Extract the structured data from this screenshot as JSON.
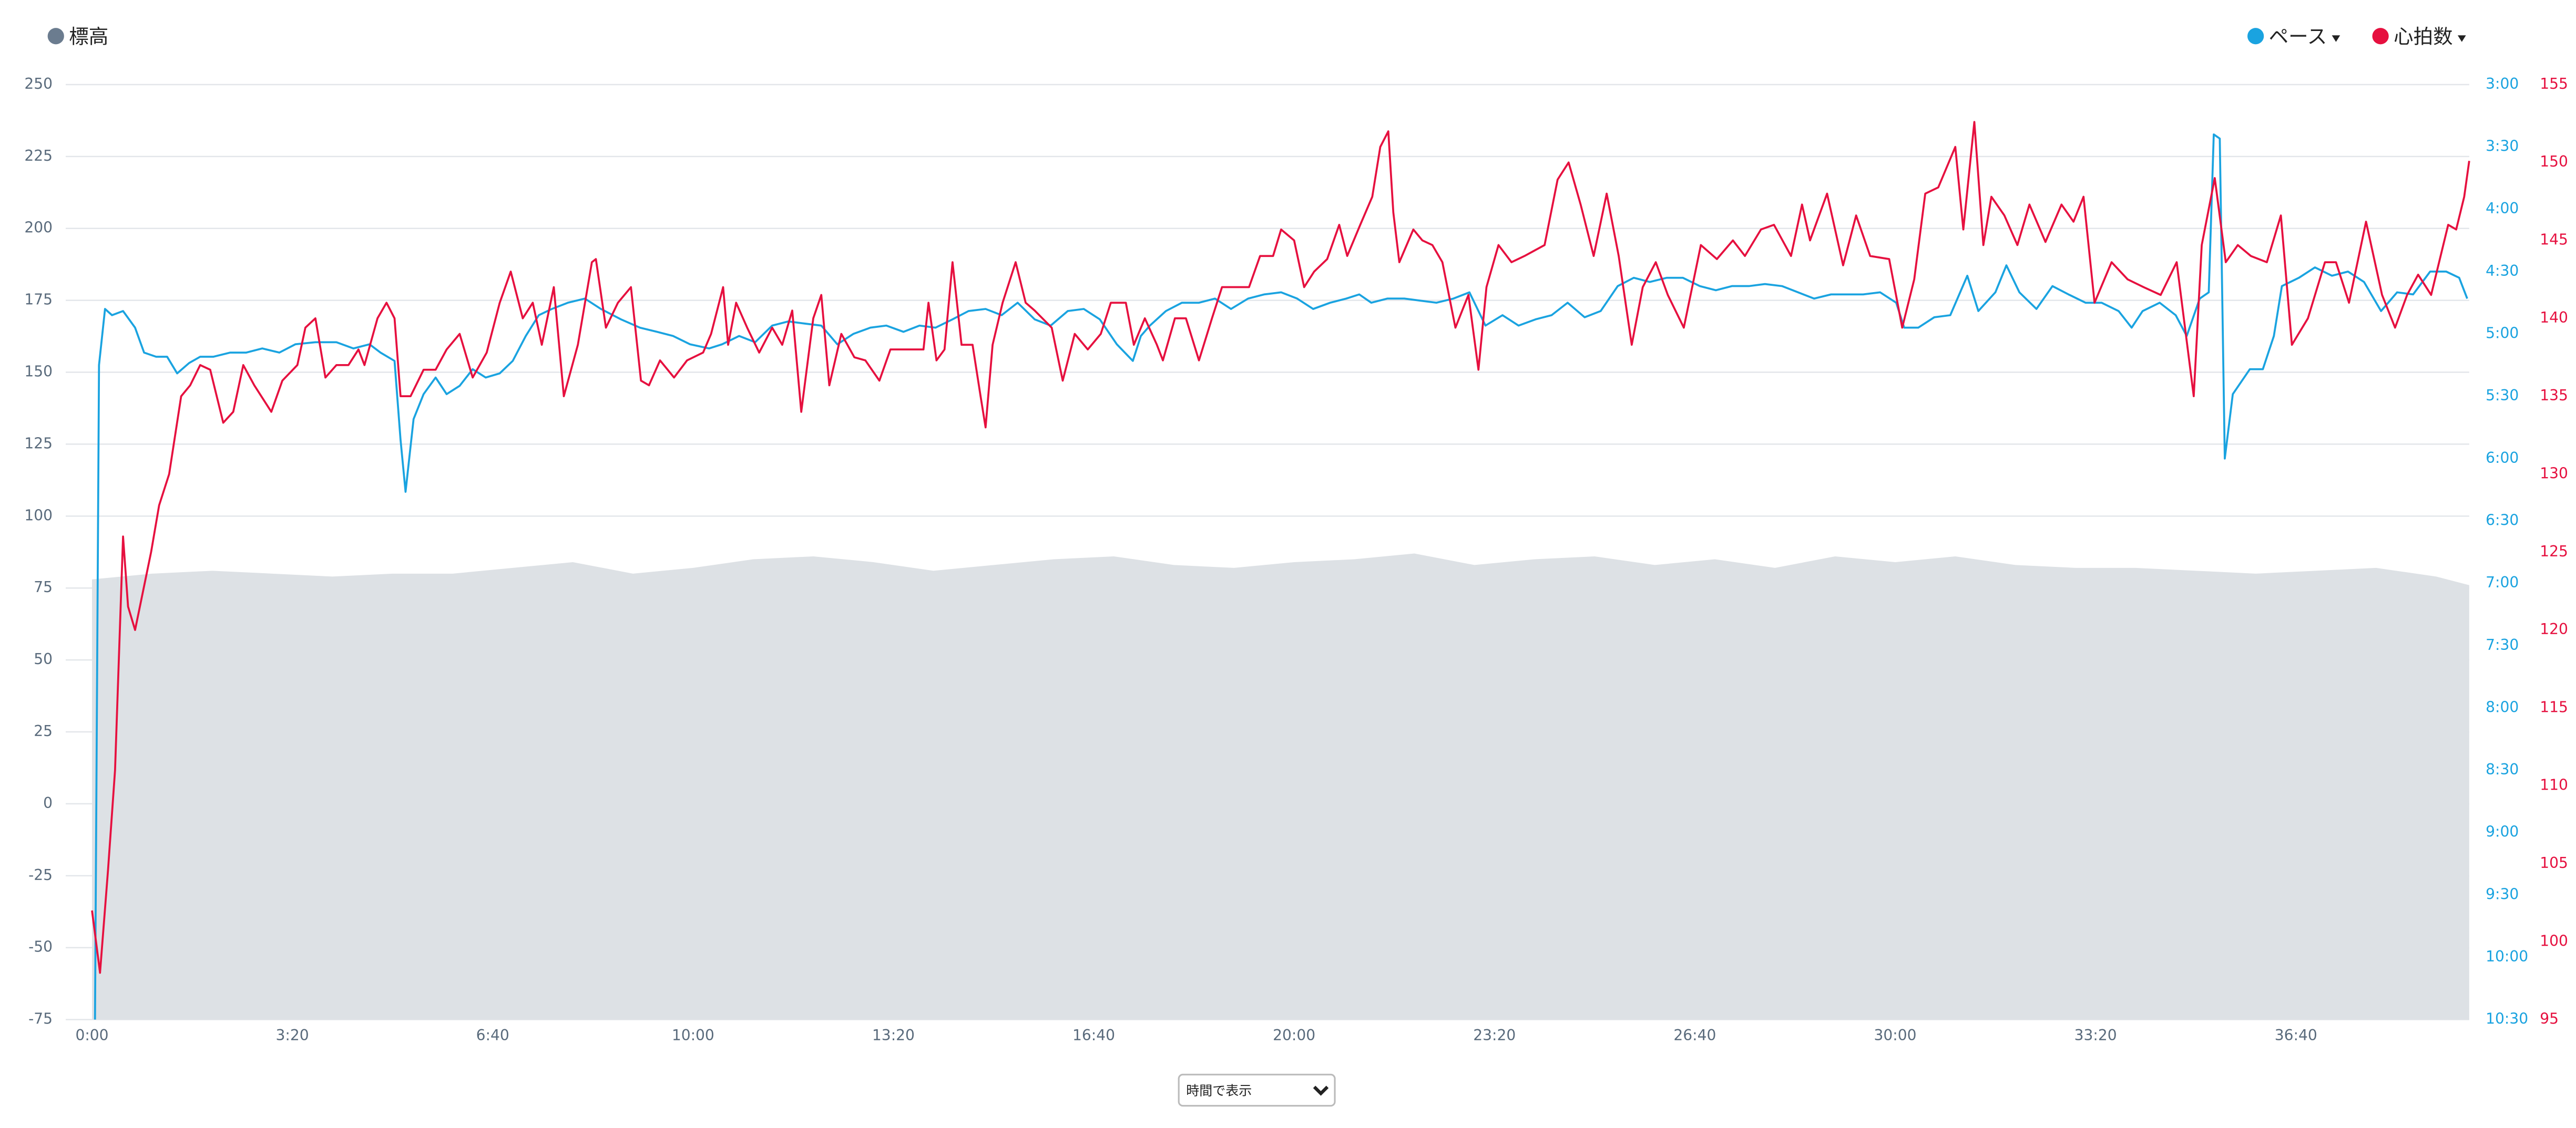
{
  "chart_data": {
    "type": "line",
    "xlim": [
      0,
      2373
    ],
    "xticks": [
      {
        "value": 0,
        "label": "0:00"
      },
      {
        "value": 200,
        "label": "3:20"
      },
      {
        "value": 400,
        "label": "6:40"
      },
      {
        "value": 600,
        "label": "10:00"
      },
      {
        "value": 800,
        "label": "13:20"
      },
      {
        "value": 1000,
        "label": "16:40"
      },
      {
        "value": 1200,
        "label": "20:00"
      },
      {
        "value": 1400,
        "label": "23:20"
      },
      {
        "value": 1600,
        "label": "26:40"
      },
      {
        "value": 1800,
        "label": "30:00"
      },
      {
        "value": 2000,
        "label": "33:20"
      },
      {
        "value": 2200,
        "label": "36:40"
      }
    ],
    "ylim": [
      -75,
      250
    ],
    "yticks": [
      -75,
      -50,
      -25,
      0,
      25,
      50,
      75,
      100,
      125,
      150,
      175,
      200,
      225,
      250
    ],
    "y2lim": [
      630,
      180
    ],
    "y2ticks": [
      {
        "value": 180,
        "label": "3:00"
      },
      {
        "value": 210,
        "label": "3:30"
      },
      {
        "value": 240,
        "label": "4:00"
      },
      {
        "value": 270,
        "label": "4:30"
      },
      {
        "value": 300,
        "label": "5:00"
      },
      {
        "value": 330,
        "label": "5:30"
      },
      {
        "value": 360,
        "label": "6:00"
      },
      {
        "value": 390,
        "label": "6:30"
      },
      {
        "value": 420,
        "label": "7:00"
      },
      {
        "value": 450,
        "label": "7:30"
      },
      {
        "value": 480,
        "label": "8:00"
      },
      {
        "value": 510,
        "label": "8:30"
      },
      {
        "value": 540,
        "label": "9:00"
      },
      {
        "value": 570,
        "label": "9:30"
      },
      {
        "value": 600,
        "label": "10:00"
      },
      {
        "value": 630,
        "label": "10:30"
      }
    ],
    "y3lim": [
      95,
      155
    ],
    "y3ticks": [
      95,
      100,
      105,
      110,
      115,
      120,
      125,
      130,
      135,
      140,
      145,
      150,
      155
    ],
    "grid": true,
    "series": [
      {
        "name": "標高",
        "type": "area",
        "axis": "y",
        "color": "#dde1e5",
        "legend_color": "#6b7c8f",
        "x": [
          0,
          60,
          120,
          180,
          240,
          300,
          360,
          420,
          480,
          540,
          600,
          660,
          720,
          780,
          840,
          900,
          960,
          1020,
          1080,
          1140,
          1200,
          1260,
          1320,
          1380,
          1440,
          1500,
          1560,
          1620,
          1680,
          1740,
          1800,
          1860,
          1920,
          1980,
          2040,
          2100,
          2160,
          2220,
          2280,
          2340,
          2373
        ],
        "values": [
          78,
          80,
          81,
          80,
          79,
          80,
          80,
          82,
          84,
          80,
          82,
          85,
          86,
          84,
          81,
          83,
          85,
          86,
          83,
          82,
          84,
          85,
          87,
          83,
          85,
          86,
          83,
          85,
          82,
          86,
          84,
          86,
          83,
          82,
          82,
          81,
          80,
          81,
          82,
          79,
          76
        ]
      },
      {
        "name": "ペース",
        "type": "line",
        "axis": "y2",
        "color": "#1aa3e0",
        "x": [
          3,
          7,
          13,
          20,
          31,
          43,
          52,
          64,
          75,
          85,
          97,
          108,
          121,
          138,
          154,
          170,
          187,
          203,
          223,
          244,
          261,
          277,
          288,
          302,
          308,
          313,
          321,
          331,
          343,
          354,
          367,
          380,
          393,
          407,
          420,
          433,
          446,
          459,
          475,
          492,
          508,
          528,
          547,
          564,
          580,
          597,
          616,
          629,
          646,
          662,
          679,
          695,
          711,
          728,
          744,
          760,
          777,
          793,
          810,
          826,
          842,
          859,
          875,
          892,
          908,
          924,
          941,
          957,
          974,
          990,
          1006,
          1023,
          1039,
          1047,
          1056,
          1072,
          1088,
          1105,
          1121,
          1137,
          1154,
          1170,
          1187,
          1203,
          1219,
          1236,
          1252,
          1265,
          1277,
          1293,
          1310,
          1326,
          1342,
          1359,
          1375,
          1391,
          1408,
          1424,
          1441,
          1457,
          1473,
          1490,
          1506,
          1523,
          1539,
          1555,
          1572,
          1588,
          1605,
          1621,
          1637,
          1654,
          1670,
          1687,
          1703,
          1719,
          1736,
          1752,
          1768,
          1785,
          1801,
          1809,
          1823,
          1839,
          1855,
          1872,
          1883,
          1900,
          1911,
          1924,
          1941,
          1957,
          1973,
          1990,
          2006,
          2023,
          2036,
          2047,
          2064,
          2080,
          2091,
          2104,
          2113,
          2118,
          2124,
          2129,
          2137,
          2154,
          2167,
          2178,
          2186,
          2203,
          2219,
          2236,
          2252,
          2268,
          2285,
          2301,
          2317,
          2334,
          2350,
          2363,
          2371
        ],
        "values": [
          630,
          315,
          288,
          291,
          289,
          297,
          309,
          311,
          311,
          319,
          314,
          311,
          311,
          309,
          309,
          307,
          309,
          305,
          304,
          304,
          307,
          305,
          309,
          313,
          351,
          376,
          341,
          329,
          321,
          329,
          325,
          317,
          321,
          319,
          313,
          301,
          291,
          288,
          285,
          283,
          288,
          293,
          297,
          299,
          301,
          305,
          307,
          305,
          301,
          304,
          296,
          294,
          295,
          296,
          305,
          300,
          297,
          296,
          299,
          296,
          297,
          293,
          289,
          288,
          291,
          285,
          293,
          296,
          289,
          288,
          293,
          305,
          313,
          301,
          296,
          289,
          285,
          285,
          283,
          288,
          283,
          281,
          280,
          283,
          288,
          285,
          283,
          281,
          285,
          283,
          283,
          284,
          285,
          283,
          280,
          296,
          291,
          296,
          293,
          291,
          285,
          292,
          289,
          277,
          273,
          275,
          273,
          273,
          277,
          279,
          277,
          277,
          276,
          277,
          280,
          283,
          281,
          281,
          281,
          280,
          285,
          297,
          297,
          292,
          291,
          272,
          289,
          280,
          267,
          280,
          288,
          277,
          281,
          285,
          285,
          289,
          297,
          289,
          285,
          291,
          301,
          283,
          280,
          204,
          206,
          360,
          329,
          317,
          317,
          301,
          277,
          273,
          268,
          272,
          270,
          275,
          289,
          280,
          281,
          270,
          270,
          273,
          283
        ]
      },
      {
        "name": "心拍数",
        "type": "line",
        "axis": "y3",
        "color": "#e6103f",
        "x": [
          0,
          8,
          16,
          23,
          31,
          36,
          43,
          51,
          59,
          67,
          77,
          89,
          98,
          108,
          118,
          131,
          141,
          151,
          162,
          179,
          190,
          205,
          213,
          223,
          233,
          244,
          256,
          266,
          272,
          285,
          294,
          302,
          308,
          318,
          331,
          343,
          354,
          367,
          380,
          394,
          407,
          418,
          430,
          440,
          449,
          461,
          471,
          485,
          499,
          503,
          513,
          525,
          538,
          548,
          556,
          567,
          581,
          594,
          610,
          618,
          630,
          635,
          643,
          654,
          666,
          679,
          689,
          699,
          708,
          720,
          728,
          736,
          748,
          761,
          772,
          786,
          797,
          818,
          830,
          835,
          843,
          851,
          859,
          868,
          879,
          887,
          892,
          899,
          909,
          922,
          932,
          941,
          958,
          969,
          981,
          994,
          1007,
          1017,
          1032,
          1040,
          1051,
          1063,
          1069,
          1081,
          1092,
          1105,
          1118,
          1128,
          1155,
          1166,
          1179,
          1187,
          1200,
          1210,
          1220,
          1233,
          1245,
          1253,
          1266,
          1278,
          1286,
          1294,
          1299,
          1305,
          1319,
          1328,
          1338,
          1348,
          1361,
          1374,
          1384,
          1392,
          1404,
          1417,
          1430,
          1450,
          1463,
          1474,
          1486,
          1499,
          1512,
          1524,
          1537,
          1548,
          1561,
          1573,
          1589,
          1606,
          1622,
          1638,
          1650,
          1666,
          1679,
          1696,
          1707,
          1715,
          1732,
          1748,
          1761,
          1775,
          1794,
          1807,
          1819,
          1830,
          1843,
          1860,
          1868,
          1879,
          1888,
          1896,
          1909,
          1922,
          1934,
          1950,
          1966,
          1978,
          1988,
          1999,
          2016,
          2032,
          2048,
          2065,
          2081,
          2098,
          2106,
          2119,
          2130,
          2142,
          2155,
          2171,
          2185,
          2196,
          2212,
          2229,
          2240,
          2253,
          2270,
          2286,
          2299,
          2311,
          2322,
          2335,
          2352,
          2360,
          2368,
          2373
        ],
        "values": [
          102,
          98,
          104.6,
          111,
          126,
          121.5,
          120,
          122.5,
          125,
          128,
          130,
          135,
          135.7,
          137,
          136.7,
          133.3,
          134,
          137,
          135.7,
          134,
          136,
          137,
          139.4,
          140,
          136.2,
          137,
          137,
          138,
          137,
          140,
          141,
          140,
          135,
          135,
          136.7,
          136.7,
          138,
          139,
          136.2,
          137.8,
          141,
          143,
          140,
          141,
          138.3,
          142,
          135,
          138.3,
          143.6,
          143.8,
          139.4,
          141,
          142,
          136,
          135.7,
          137.3,
          136.2,
          137.3,
          137.8,
          139,
          142,
          138.3,
          141,
          139.4,
          137.8,
          139.4,
          138.3,
          140.5,
          134,
          140,
          141.5,
          135.7,
          139,
          137.5,
          137.3,
          136,
          138,
          138,
          138,
          141,
          137.3,
          138,
          143.6,
          138.3,
          138.3,
          135,
          133,
          138.3,
          141,
          143.6,
          141,
          140.5,
          139.4,
          136,
          139,
          138,
          139,
          141,
          141,
          138.3,
          140,
          138.3,
          137.3,
          140,
          140,
          137.3,
          140,
          142,
          142,
          144,
          144,
          145.7,
          145,
          142,
          143,
          143.8,
          146,
          144,
          146,
          147.8,
          151,
          152,
          146.8,
          143.6,
          145.7,
          145,
          144.7,
          143.6,
          139.4,
          141.5,
          136.7,
          142,
          144.7,
          143.6,
          144,
          144.7,
          148.9,
          150,
          147.3,
          144,
          148,
          144,
          138.3,
          142,
          143.6,
          141.5,
          139.4,
          144.7,
          143.8,
          145,
          144,
          145.7,
          146,
          144,
          147.3,
          145,
          148,
          143.4,
          146.6,
          144,
          143.8,
          139.4,
          142.5,
          148,
          148.4,
          151,
          145.7,
          152.6,
          144.7,
          147.8,
          146.6,
          144.7,
          147.3,
          144.9,
          147.3,
          146.2,
          147.8,
          141,
          143.6,
          142.5,
          142,
          141.5,
          143.6,
          135,
          144.7,
          149,
          143.6,
          144.7,
          144,
          143.6,
          146.6,
          138.3,
          140,
          143.6,
          143.6,
          141,
          146.2,
          141.5,
          139.4,
          141.5,
          142.8,
          141.5,
          146,
          145.7,
          147.8,
          150.1
        ]
      }
    ]
  },
  "controls": {
    "view_select": "時間で表示"
  }
}
